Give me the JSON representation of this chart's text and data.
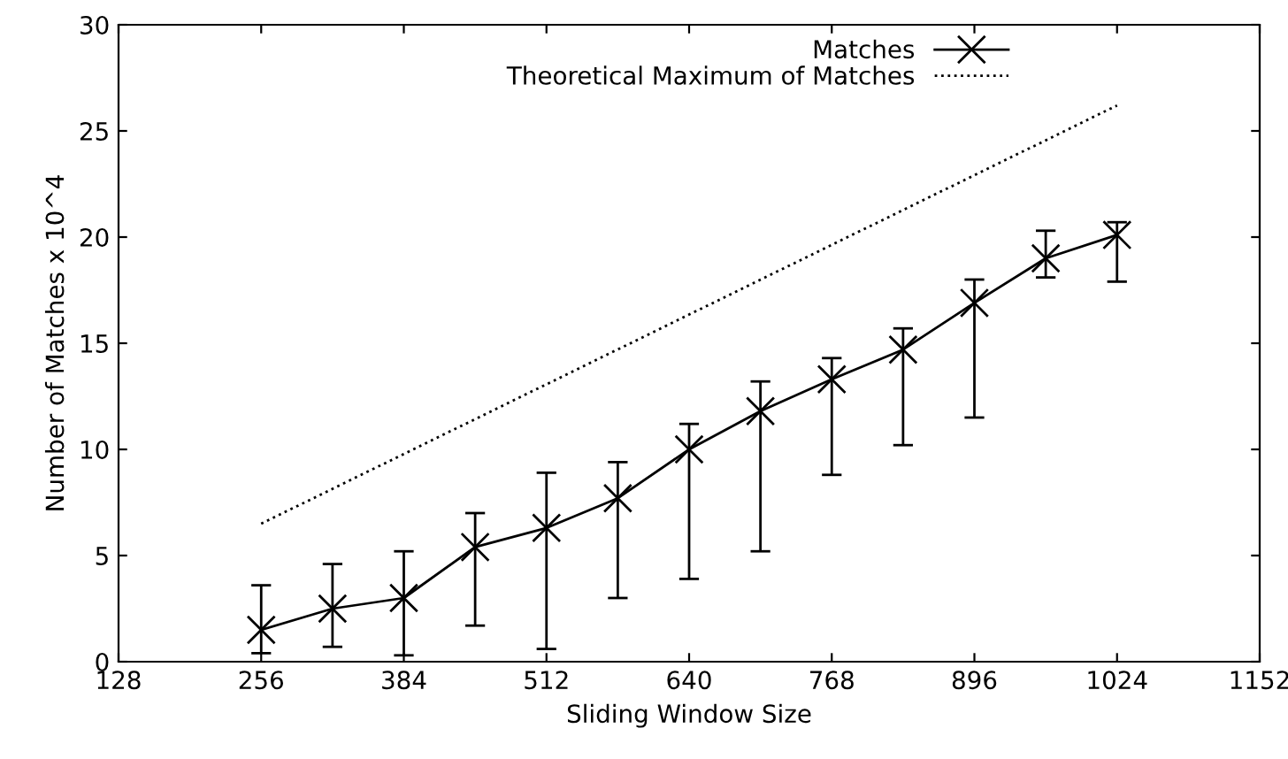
{
  "chart_data": {
    "type": "line",
    "xlabel": "Sliding Window Size",
    "ylabel": "Number of Matches x 10^4",
    "xlim": [
      128,
      1152
    ],
    "xticks": [
      128,
      256,
      384,
      512,
      640,
      768,
      896,
      1024,
      1152
    ],
    "ylim": [
      0,
      30
    ],
    "yticks": [
      0,
      5,
      10,
      15,
      20,
      25,
      30
    ],
    "legend": "top",
    "grid": false,
    "series": [
      {
        "name": "Matches",
        "color": "#000000",
        "marker": "cross",
        "line_style": "solid",
        "x": [
          256,
          320,
          384,
          448,
          512,
          576,
          640,
          704,
          768,
          832,
          896,
          960,
          1024
        ],
        "values": [
          1.5,
          2.5,
          3.0,
          5.4,
          6.3,
          7.7,
          10.0,
          11.8,
          13.3,
          14.7,
          16.9,
          19.0,
          20.1
        ],
        "errors": [
          [
            0.4,
            3.6
          ],
          [
            0.7,
            4.6
          ],
          [
            0.3,
            5.2
          ],
          [
            1.7,
            7.0
          ],
          [
            0.6,
            8.9
          ],
          [
            3.0,
            9.4
          ],
          [
            3.9,
            11.2
          ],
          [
            5.2,
            13.2
          ],
          [
            8.8,
            14.3
          ],
          [
            10.2,
            15.7
          ],
          [
            11.5,
            18.0
          ],
          [
            18.1,
            20.3
          ],
          [
            17.9,
            20.7
          ]
        ]
      },
      {
        "name": "Theoretical Maximum of Matches",
        "color": "#000000",
        "marker": "none",
        "line_style": "dotted",
        "x": [
          256,
          1024
        ],
        "values": [
          6.5,
          26.2
        ]
      }
    ]
  }
}
